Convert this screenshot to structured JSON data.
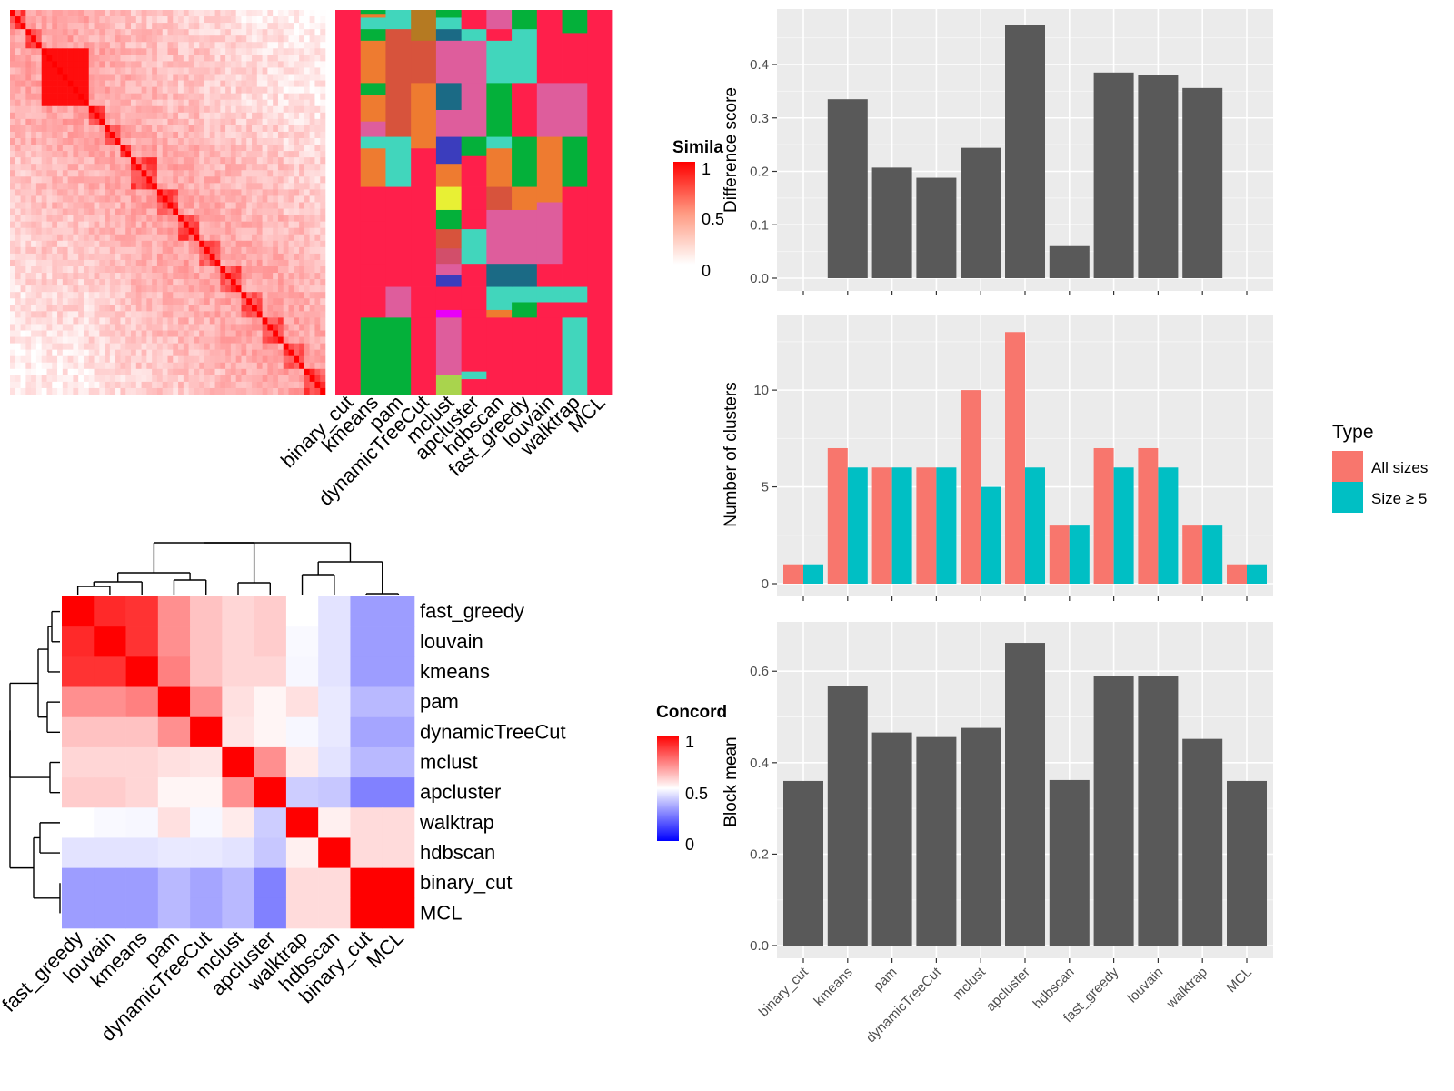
{
  "similarity_heatmap": {
    "legend_title": "Simila",
    "legend_ticks": [
      "1",
      "0.5",
      "0"
    ],
    "color_low": "#ffffff",
    "color_high": "#ff0000"
  },
  "cluster_panel": {
    "columns": [
      "binary_cut",
      "kmeans",
      "pam",
      "dynamicTreeCut",
      "mclust",
      "apcluster",
      "hdbscan",
      "fast_greedy",
      "louvain",
      "walktrap",
      "MCL"
    ],
    "palette": [
      "#ff1f4b",
      "#04b03a",
      "#ee7b30",
      "#41d6bc",
      "#de5d9c",
      "#d7533c",
      "#1b6a85",
      "#3b3dbd",
      "#e8f034",
      "#e800f8",
      "#b57a22",
      "#a9d44d",
      "#d24e6a"
    ]
  },
  "concordance_heatmap": {
    "legend_title": "Concord",
    "legend_ticks": [
      "1",
      "0.5",
      "0"
    ],
    "row_labels": [
      "fast_greedy",
      "louvain",
      "kmeans",
      "pam",
      "dynamicTreeCut",
      "mclust",
      "apcluster",
      "walktrap",
      "hdbscan",
      "binary_cut",
      "MCL"
    ],
    "col_labels": [
      "fast_greedy",
      "louvain",
      "kmeans",
      "pam",
      "dynamicTreeCut",
      "mclust",
      "apcluster",
      "walktrap",
      "hdbscan",
      "binary_cut",
      "MCL"
    ],
    "values": [
      [
        1.0,
        0.92,
        0.9,
        0.72,
        0.62,
        0.58,
        0.6,
        0.5,
        0.4,
        0.15,
        0.15
      ],
      [
        0.92,
        1.0,
        0.9,
        0.72,
        0.62,
        0.58,
        0.6,
        0.48,
        0.4,
        0.15,
        0.15
      ],
      [
        0.9,
        0.9,
        1.0,
        0.75,
        0.62,
        0.58,
        0.58,
        0.47,
        0.4,
        0.15,
        0.15
      ],
      [
        0.72,
        0.72,
        0.75,
        1.0,
        0.72,
        0.56,
        0.52,
        0.56,
        0.42,
        0.25,
        0.25
      ],
      [
        0.62,
        0.62,
        0.62,
        0.72,
        1.0,
        0.55,
        0.52,
        0.47,
        0.42,
        0.18,
        0.18
      ],
      [
        0.58,
        0.58,
        0.58,
        0.56,
        0.55,
        1.0,
        0.72,
        0.54,
        0.4,
        0.25,
        0.25
      ],
      [
        0.6,
        0.6,
        0.58,
        0.52,
        0.52,
        0.72,
        1.0,
        0.32,
        0.3,
        0.05,
        0.05
      ],
      [
        0.5,
        0.48,
        0.47,
        0.56,
        0.47,
        0.54,
        0.32,
        1.0,
        0.53,
        0.57,
        0.57
      ],
      [
        0.4,
        0.4,
        0.4,
        0.42,
        0.42,
        0.4,
        0.3,
        0.53,
        1.0,
        0.57,
        0.57
      ],
      [
        0.15,
        0.15,
        0.15,
        0.25,
        0.18,
        0.25,
        0.05,
        0.57,
        0.57,
        1.0,
        1.0
      ],
      [
        0.15,
        0.15,
        0.15,
        0.25,
        0.18,
        0.25,
        0.05,
        0.57,
        0.57,
        1.0,
        1.0
      ]
    ],
    "color_low": "#0000ff",
    "color_mid": "#ffffff",
    "color_high": "#ff0000"
  },
  "chart_data": [
    {
      "type": "bar",
      "categories": [
        "binary_cut",
        "kmeans",
        "pam",
        "dynamicTreeCut",
        "mclust",
        "apcluster",
        "hdbscan",
        "fast_greedy",
        "louvain",
        "walktrap",
        "MCL"
      ],
      "values": [
        0,
        0.335,
        0.207,
        0.188,
        0.244,
        0.474,
        0.06,
        0.385,
        0.381,
        0.356,
        0
      ],
      "title": "",
      "xlabel": "",
      "ylabel": "Difference score",
      "ylim": [
        0,
        0.48
      ],
      "yticks": [
        "0.0",
        "0.1",
        "0.2",
        "0.3",
        "0.4"
      ],
      "grid": true,
      "bar_color": "#595959"
    },
    {
      "type": "bar",
      "categories": [
        "binary_cut",
        "kmeans",
        "pam",
        "dynamicTreeCut",
        "mclust",
        "apcluster",
        "hdbscan",
        "fast_greedy",
        "louvain",
        "walktrap",
        "MCL"
      ],
      "series": [
        {
          "name": "All sizes",
          "values": [
            1,
            7,
            6,
            6,
            10,
            13,
            3,
            7,
            7,
            3,
            1
          ],
          "color": "#f8766d"
        },
        {
          "name": "Size ≥ 5",
          "values": [
            1,
            6,
            6,
            6,
            5,
            6,
            3,
            6,
            6,
            3,
            1
          ],
          "color": "#00bfc4"
        }
      ],
      "title": "",
      "xlabel": "",
      "ylabel": "Number of clusters",
      "ylim": [
        0,
        13.2
      ],
      "yticks": [
        "0",
        "5",
        "10"
      ],
      "legend_title": "Type",
      "legend_position": "right",
      "grid": true
    },
    {
      "type": "bar",
      "categories": [
        "binary_cut",
        "kmeans",
        "pam",
        "dynamicTreeCut",
        "mclust",
        "apcluster",
        "hdbscan",
        "fast_greedy",
        "louvain",
        "walktrap",
        "MCL"
      ],
      "values": [
        0.36,
        0.568,
        0.466,
        0.456,
        0.476,
        0.662,
        0.362,
        0.59,
        0.59,
        0.452,
        0.36
      ],
      "title": "",
      "xlabel": "",
      "ylabel": "Block mean",
      "ylim": [
        0,
        0.68
      ],
      "yticks": [
        "0.0",
        "0.2",
        "0.4",
        "0.6"
      ],
      "grid": true,
      "bar_color": "#595959"
    }
  ]
}
